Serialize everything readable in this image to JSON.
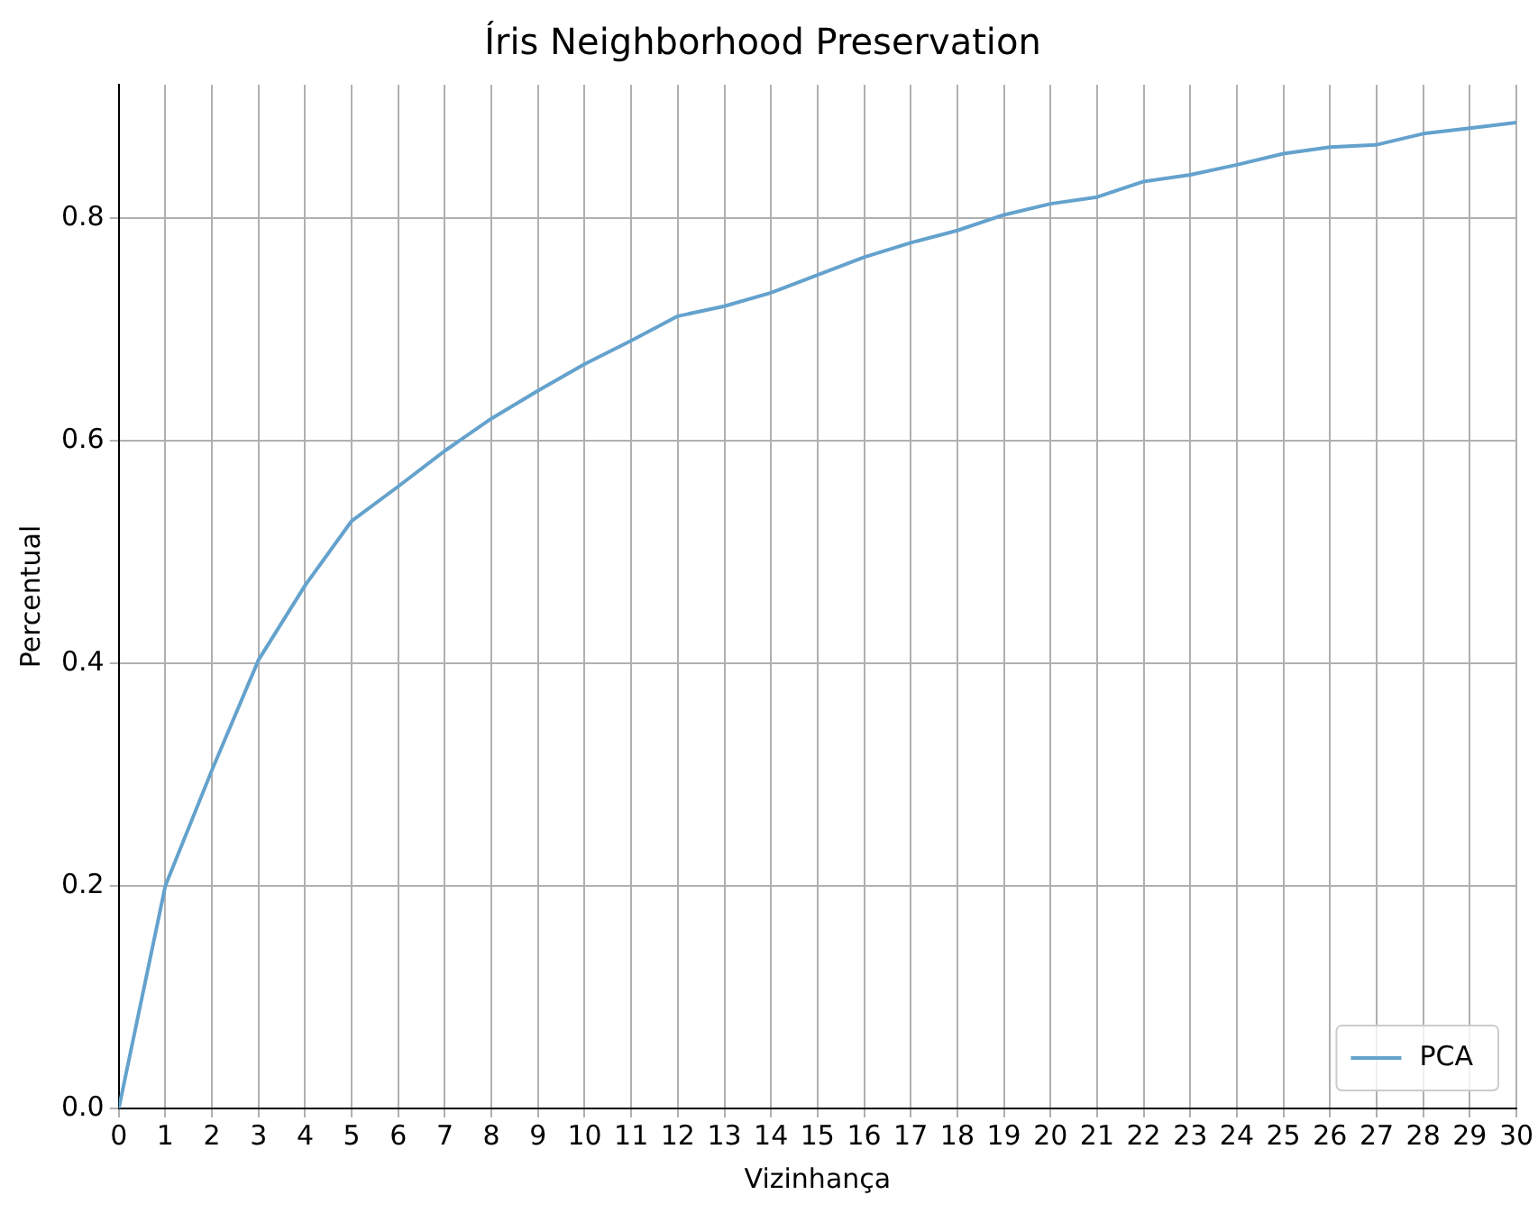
{
  "chart_data": {
    "type": "line",
    "title": "Íris Neighborhood Preservation",
    "xlabel": "Vizinhança",
    "ylabel": "Percentual",
    "x": [
      0,
      1,
      2,
      3,
      4,
      5,
      6,
      7,
      8,
      9,
      10,
      11,
      12,
      13,
      14,
      15,
      16,
      17,
      18,
      19,
      20,
      21,
      22,
      23,
      24,
      25,
      26,
      27,
      28,
      29,
      30
    ],
    "series": [
      {
        "name": "PCA",
        "color": "#64a2cd",
        "values": [
          0,
          0.2,
          0.304,
          0.403,
          0.47,
          0.528,
          0.559,
          0.591,
          0.62,
          0.645,
          0.669,
          0.69,
          0.712,
          0.721,
          0.733,
          0.749,
          0.765,
          0.778,
          0.789,
          0.803,
          0.813,
          0.819,
          0.833,
          0.839,
          0.848,
          0.858,
          0.864,
          0.866,
          0.876,
          0.881,
          0.886
        ]
      }
    ],
    "xlim": [
      0,
      30
    ],
    "xticks": [
      0,
      1,
      2,
      3,
      4,
      5,
      6,
      7,
      8,
      9,
      10,
      11,
      12,
      13,
      14,
      15,
      16,
      17,
      18,
      19,
      20,
      21,
      22,
      23,
      24,
      25,
      26,
      27,
      28,
      29,
      30
    ],
    "ylim": [
      0,
      0.92
    ],
    "yticks": [
      {
        "value": 0,
        "label": "0.0"
      },
      {
        "value": 0.2,
        "label": "0.2"
      },
      {
        "value": 0.4,
        "label": "0.4"
      },
      {
        "value": 0.6,
        "label": "0.6"
      },
      {
        "value": 0.8,
        "label": "0.8"
      }
    ],
    "grid": true,
    "legend": "bottom right",
    "marker": "none",
    "line_style": "solid"
  }
}
